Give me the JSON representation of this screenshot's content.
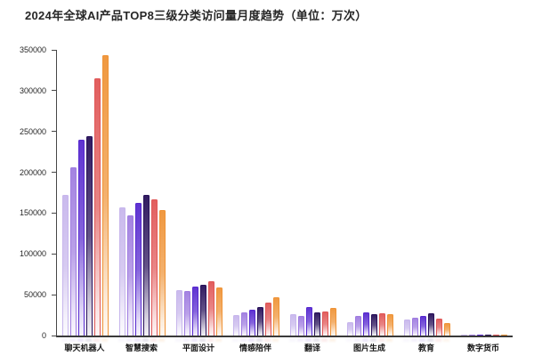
{
  "title": "2024年全球AI产品TOP8三级分类访问量月度趋势（单位：万次）",
  "chart_data": {
    "type": "bar",
    "title": "2024年全球AI产品TOP8三级分类访问量月度趋势",
    "unit": "万次",
    "categories": [
      "聊天机器人",
      "智慧搜索",
      "平面设计",
      "情感陪伴",
      "翻译",
      "图片生成",
      "教育",
      "数字货币"
    ],
    "series": [
      {
        "name": "s1",
        "color": "#c7b6ec",
        "values": [
          172000,
          157000,
          56000,
          25000,
          26500,
          16000,
          20000,
          800
        ]
      },
      {
        "name": "s2",
        "color": "#9f7ce0",
        "values": [
          206000,
          147000,
          54000,
          28000,
          24000,
          23500,
          22000,
          900
        ]
      },
      {
        "name": "s3",
        "color": "#5628cf",
        "values": [
          240000,
          163000,
          60000,
          32000,
          35000,
          28500,
          24000,
          1000
        ]
      },
      {
        "name": "s4",
        "color": "#271059",
        "values": [
          244000,
          172000,
          62000,
          35000,
          28000,
          26000,
          27000,
          900
        ]
      },
      {
        "name": "s5",
        "color": "#e05656",
        "values": [
          315000,
          167000,
          67000,
          40000,
          30000,
          27500,
          21000,
          800
        ]
      },
      {
        "name": "s6",
        "color": "#ef9336",
        "values": [
          343000,
          154000,
          59000,
          46500,
          33500,
          26000,
          15000,
          700
        ]
      }
    ],
    "ylim": [
      0,
      350000
    ],
    "yticks": [
      0,
      50000,
      100000,
      150000,
      200000,
      250000,
      300000,
      350000
    ],
    "xlabel": "",
    "ylabel": "",
    "grid": false,
    "legend": false
  }
}
